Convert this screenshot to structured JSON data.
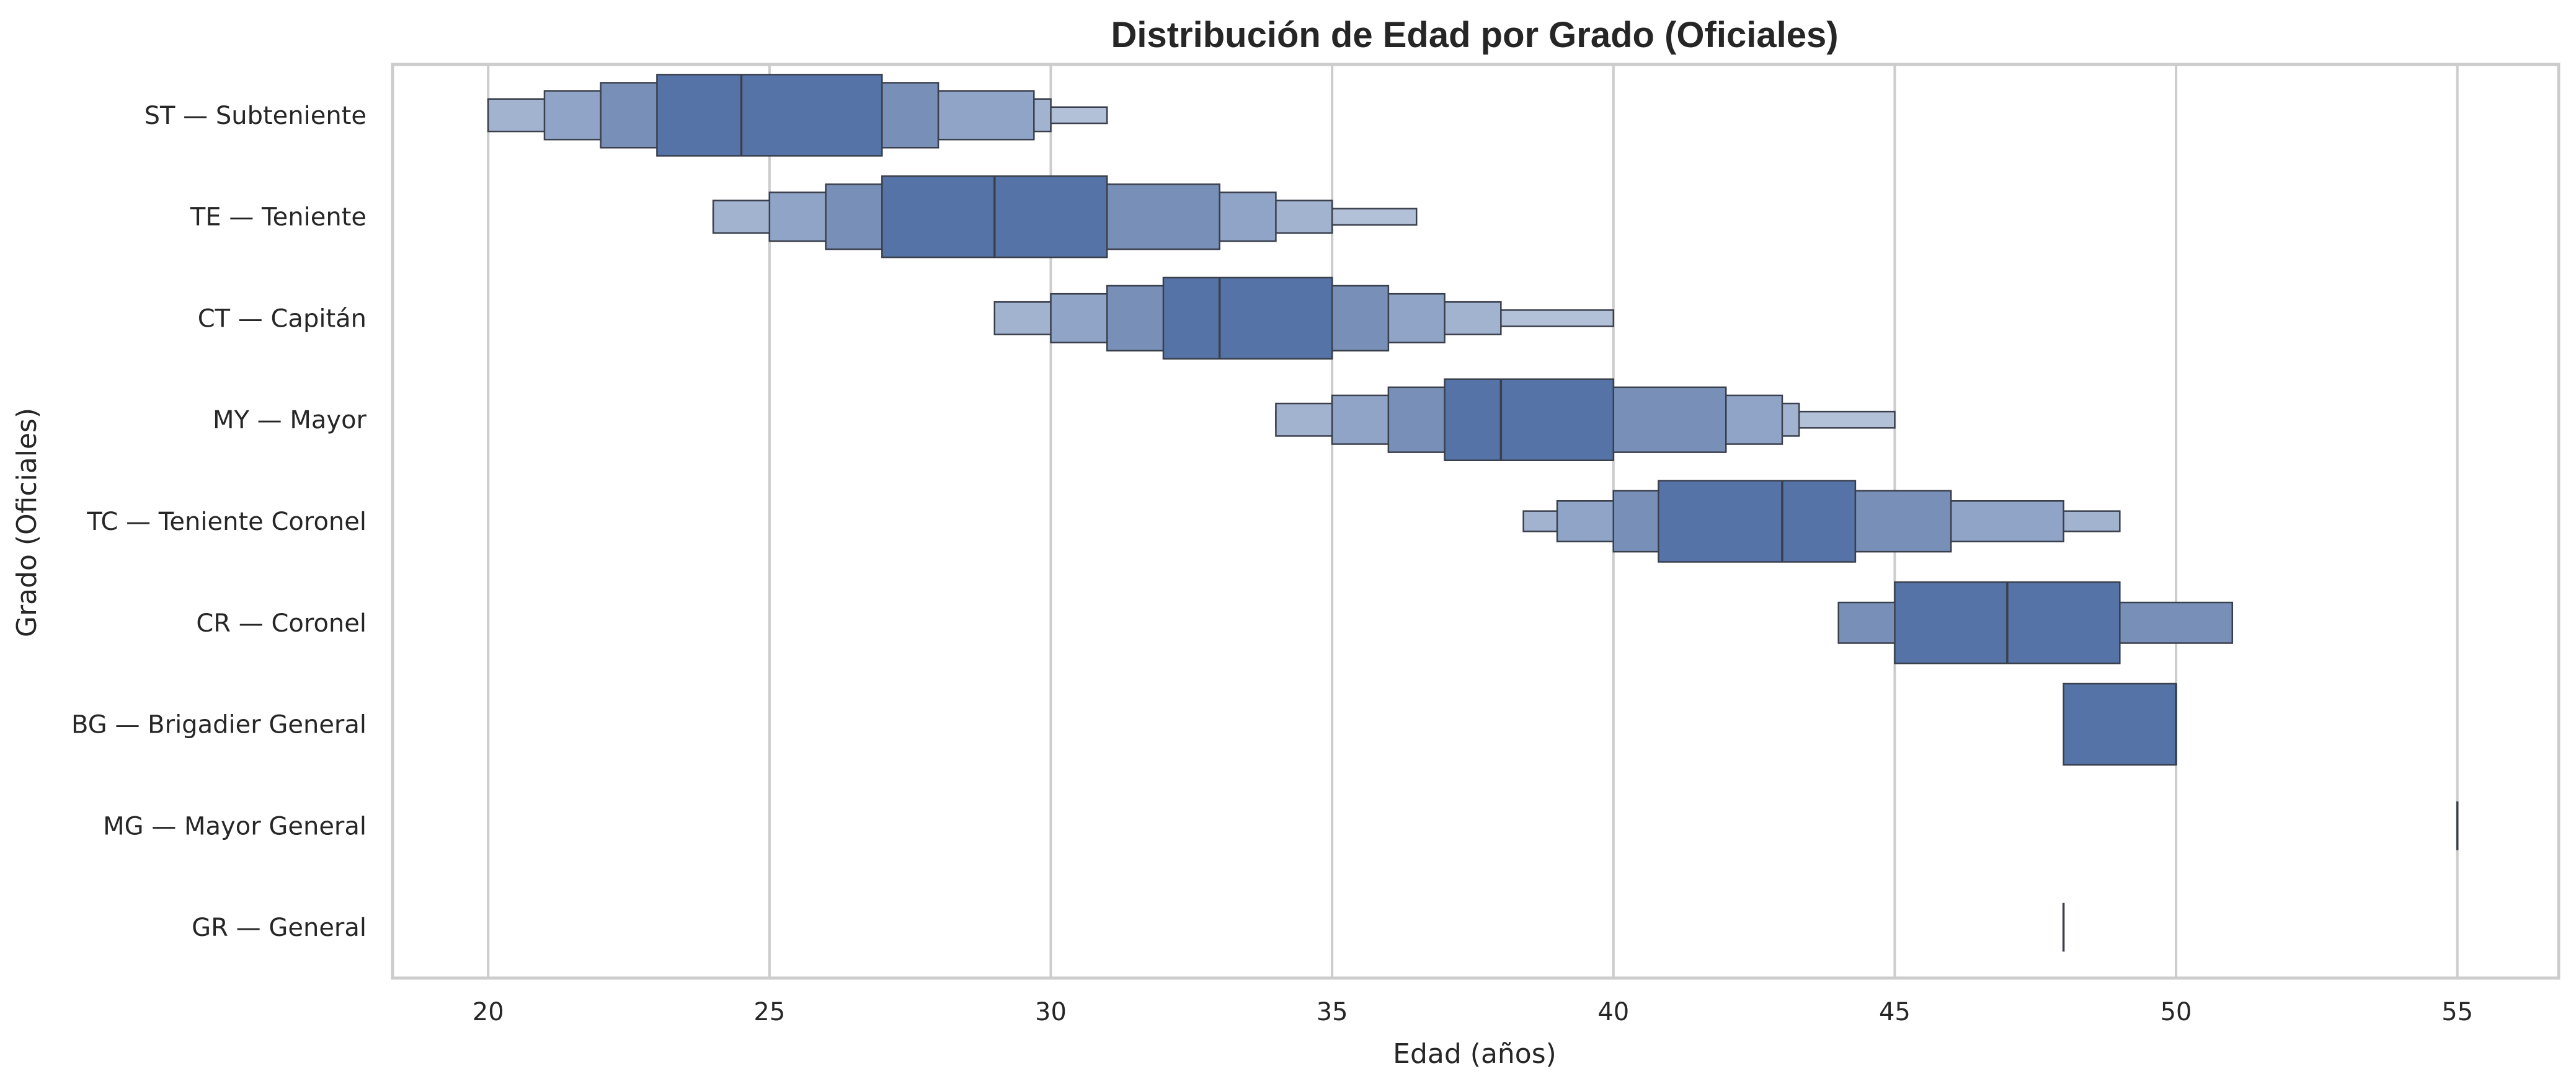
{
  "chart_data": {
    "type": "boxen",
    "title": "Distribución de Edad por Grado (Oficiales)",
    "xlabel": "Edad (años)",
    "ylabel": "Grado (Oficiales)",
    "xlim": [
      18.3,
      56.8
    ],
    "xticks": [
      20,
      25,
      30,
      35,
      40,
      45,
      50,
      55
    ],
    "grid": true,
    "orientation": "horizontal",
    "colors": {
      "base": "#4c6ea8",
      "levels": [
        "#5573a6",
        "#7890b8",
        "#8fa4c6",
        "#a2b3d0",
        "#b2c0d8"
      ],
      "edge": "#3a3f4c",
      "grid": "#cccccc"
    },
    "categories": [
      "ST — Subteniente",
      "TE — Teniente",
      "CT — Capitán",
      "MY — Mayor",
      "TC — Teniente Coronel",
      "CR — Coronel",
      "BG — Brigadier General",
      "MG — Mayor General",
      "GR — General"
    ],
    "series": [
      {
        "median": 24.5,
        "boxes": [
          [
            23,
            27
          ],
          [
            22,
            28
          ],
          [
            21,
            29.7
          ],
          [
            20,
            30
          ],
          [
            20,
            31
          ]
        ]
      },
      {
        "median": 29,
        "boxes": [
          [
            27,
            31
          ],
          [
            26,
            33
          ],
          [
            25,
            34
          ],
          [
            24,
            35
          ],
          [
            24,
            36.5
          ]
        ]
      },
      {
        "median": 33,
        "boxes": [
          [
            32,
            35
          ],
          [
            31,
            36
          ],
          [
            30,
            37
          ],
          [
            29,
            38
          ],
          [
            29,
            40
          ]
        ]
      },
      {
        "median": 38,
        "boxes": [
          [
            37,
            40
          ],
          [
            36,
            42
          ],
          [
            35,
            43
          ],
          [
            34,
            43.3
          ],
          [
            34,
            45
          ]
        ]
      },
      {
        "median": 43,
        "boxes": [
          [
            40.8,
            44.3
          ],
          [
            40,
            46
          ],
          [
            39,
            48
          ],
          [
            38.4,
            49
          ]
        ]
      },
      {
        "median": 47,
        "boxes": [
          [
            45,
            49
          ],
          [
            44,
            51
          ]
        ]
      },
      {
        "median": 50,
        "boxes": [
          [
            48,
            50
          ]
        ]
      },
      {
        "median": 55,
        "boxes": []
      },
      {
        "median": 48,
        "boxes": []
      }
    ]
  }
}
